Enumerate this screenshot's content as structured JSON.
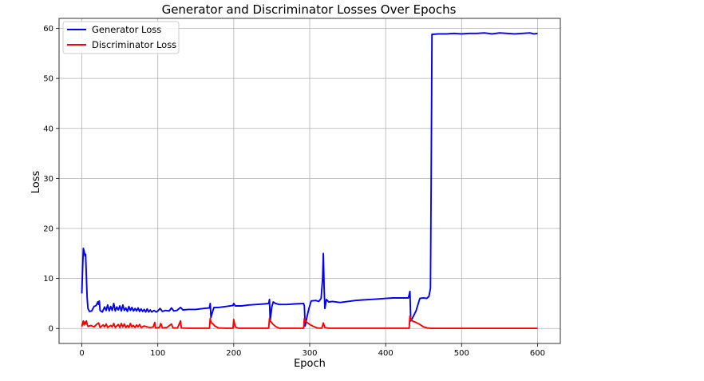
{
  "chart_data": {
    "type": "line",
    "title": "Generator and Discriminator Losses Over Epochs",
    "xlabel": "Epoch",
    "ylabel": "Loss",
    "xlim": [
      -30,
      630
    ],
    "ylim": [
      -3,
      62
    ],
    "xticks": [
      0,
      100,
      200,
      300,
      400,
      500,
      600
    ],
    "yticks": [
      0,
      10,
      20,
      30,
      40,
      50,
      60
    ],
    "grid": true,
    "legend_position": "top-left",
    "series": [
      {
        "name": "Generator Loss",
        "color": "#0000ff",
        "points": [
          [
            0,
            7
          ],
          [
            1,
            12
          ],
          [
            2,
            16
          ],
          [
            3,
            15.5
          ],
          [
            4,
            14.5
          ],
          [
            5,
            14.8
          ],
          [
            6,
            10
          ],
          [
            7,
            6
          ],
          [
            8,
            4
          ],
          [
            10,
            3.4
          ],
          [
            13,
            3.5
          ],
          [
            16,
            4.4
          ],
          [
            19,
            4.6
          ],
          [
            21,
            5.3
          ],
          [
            22,
            4.8
          ],
          [
            23,
            5.5
          ],
          [
            24,
            3.6
          ],
          [
            27,
            3.3
          ],
          [
            30,
            4.3
          ],
          [
            32,
            3.6
          ],
          [
            34,
            4.7
          ],
          [
            36,
            3.5
          ],
          [
            38,
            4.4
          ],
          [
            40,
            3.6
          ],
          [
            42,
            5.0
          ],
          [
            44,
            3.5
          ],
          [
            46,
            4.3
          ],
          [
            48,
            3.7
          ],
          [
            50,
            4.5
          ],
          [
            52,
            3.5
          ],
          [
            54,
            4.7
          ],
          [
            56,
            3.6
          ],
          [
            58,
            4.1
          ],
          [
            60,
            3.4
          ],
          [
            62,
            4.4
          ],
          [
            64,
            3.6
          ],
          [
            66,
            4.2
          ],
          [
            68,
            3.5
          ],
          [
            70,
            4.0
          ],
          [
            72,
            3.5
          ],
          [
            74,
            4.1
          ],
          [
            76,
            3.4
          ],
          [
            78,
            3.9
          ],
          [
            80,
            3.4
          ],
          [
            82,
            3.8
          ],
          [
            84,
            3.3
          ],
          [
            86,
            3.9
          ],
          [
            88,
            3.3
          ],
          [
            90,
            3.7
          ],
          [
            92,
            3.3
          ],
          [
            95,
            3.6
          ],
          [
            98,
            3.3
          ],
          [
            100,
            3.5
          ],
          [
            103,
            4.0
          ],
          [
            106,
            3.4
          ],
          [
            110,
            3.6
          ],
          [
            115,
            3.5
          ],
          [
            118,
            4.1
          ],
          [
            121,
            3.5
          ],
          [
            125,
            3.6
          ],
          [
            130,
            4.2
          ],
          [
            133,
            3.7
          ],
          [
            140,
            3.8
          ],
          [
            150,
            3.8
          ],
          [
            160,
            4.0
          ],
          [
            168,
            4.1
          ],
          [
            169,
            5.0
          ],
          [
            170,
            2.2
          ],
          [
            172,
            3.3
          ],
          [
            174,
            4.2
          ],
          [
            180,
            4.2
          ],
          [
            190,
            4.4
          ],
          [
            199,
            4.6
          ],
          [
            200,
            5.0
          ],
          [
            202,
            4.5
          ],
          [
            210,
            4.5
          ],
          [
            220,
            4.7
          ],
          [
            230,
            4.8
          ],
          [
            240,
            4.9
          ],
          [
            246,
            5.0
          ],
          [
            247,
            5.8
          ],
          [
            248,
            1.5
          ],
          [
            250,
            4.2
          ],
          [
            252,
            5.3
          ],
          [
            255,
            5.0
          ],
          [
            260,
            4.8
          ],
          [
            270,
            4.8
          ],
          [
            280,
            4.9
          ],
          [
            292,
            5.0
          ],
          [
            293,
            4.5
          ],
          [
            294,
            0.5
          ],
          [
            296,
            2.0
          ],
          [
            299,
            4.0
          ],
          [
            302,
            5.5
          ],
          [
            308,
            5.6
          ],
          [
            312,
            5.4
          ],
          [
            315,
            6.0
          ],
          [
            317,
            10
          ],
          [
            318,
            15
          ],
          [
            319,
            8
          ],
          [
            320,
            4.0
          ],
          [
            322,
            5.8
          ],
          [
            325,
            5.3
          ],
          [
            330,
            5.4
          ],
          [
            340,
            5.2
          ],
          [
            350,
            5.4
          ],
          [
            360,
            5.6
          ],
          [
            370,
            5.7
          ],
          [
            380,
            5.8
          ],
          [
            390,
            5.9
          ],
          [
            400,
            6.0
          ],
          [
            410,
            6.1
          ],
          [
            420,
            6.1
          ],
          [
            430,
            6.1
          ],
          [
            432,
            7.4
          ],
          [
            433,
            1.5
          ],
          [
            435,
            2.0
          ],
          [
            440,
            3.5
          ],
          [
            445,
            6.0
          ],
          [
            450,
            6.1
          ],
          [
            454,
            6.0
          ],
          [
            457,
            6.4
          ],
          [
            459,
            8.0
          ],
          [
            460,
            30
          ],
          [
            461,
            58.8
          ],
          [
            470,
            58.9
          ],
          [
            480,
            58.9
          ],
          [
            490,
            59.0
          ],
          [
            500,
            58.9
          ],
          [
            510,
            59.0
          ],
          [
            520,
            59.0
          ],
          [
            530,
            59.1
          ],
          [
            540,
            58.9
          ],
          [
            550,
            59.1
          ],
          [
            560,
            59.0
          ],
          [
            570,
            58.9
          ],
          [
            580,
            59.0
          ],
          [
            590,
            59.1
          ],
          [
            595,
            58.9
          ],
          [
            600,
            59.0
          ]
        ]
      },
      {
        "name": "Discriminator Loss",
        "color": "#ff0000",
        "points": [
          [
            0,
            0.4
          ],
          [
            1,
            1.0
          ],
          [
            2,
            1.5
          ],
          [
            3,
            0.7
          ],
          [
            4,
            1.3
          ],
          [
            5,
            0.9
          ],
          [
            6,
            1.5
          ],
          [
            7,
            0.8
          ],
          [
            8,
            0.4
          ],
          [
            12,
            0.6
          ],
          [
            16,
            0.3
          ],
          [
            20,
            0.9
          ],
          [
            22,
            1.1
          ],
          [
            24,
            0.2
          ],
          [
            28,
            0.7
          ],
          [
            30,
            0.3
          ],
          [
            32,
            0.9
          ],
          [
            34,
            0.2
          ],
          [
            38,
            0.6
          ],
          [
            40,
            0.3
          ],
          [
            42,
            1.0
          ],
          [
            44,
            0.2
          ],
          [
            48,
            0.8
          ],
          [
            50,
            0.2
          ],
          [
            52,
            1.0
          ],
          [
            54,
            0.3
          ],
          [
            56,
            0.9
          ],
          [
            58,
            0.2
          ],
          [
            60,
            0.6
          ],
          [
            62,
            0.2
          ],
          [
            64,
            1.0
          ],
          [
            66,
            0.3
          ],
          [
            68,
            0.6
          ],
          [
            70,
            0.2
          ],
          [
            72,
            0.7
          ],
          [
            74,
            0.3
          ],
          [
            76,
            0.8
          ],
          [
            78,
            0.2
          ],
          [
            82,
            0.5
          ],
          [
            86,
            0.3
          ],
          [
            90,
            0.2
          ],
          [
            94,
            0.3
          ],
          [
            96,
            1.2
          ],
          [
            97,
            0.1
          ],
          [
            102,
            0.2
          ],
          [
            104,
            1.0
          ],
          [
            106,
            0.1
          ],
          [
            112,
            0.2
          ],
          [
            118,
            0.9
          ],
          [
            120,
            0.1
          ],
          [
            126,
            0.1
          ],
          [
            130,
            1.5
          ],
          [
            131,
            0.1
          ],
          [
            140,
            0.05
          ],
          [
            150,
            0.05
          ],
          [
            160,
            0.05
          ],
          [
            168,
            0.05
          ],
          [
            169,
            2.0
          ],
          [
            170,
            1.2
          ],
          [
            172,
            1.0
          ],
          [
            175,
            0.5
          ],
          [
            180,
            0.1
          ],
          [
            190,
            0.05
          ],
          [
            199,
            0.05
          ],
          [
            200,
            1.8
          ],
          [
            202,
            0.3
          ],
          [
            206,
            0.05
          ],
          [
            220,
            0.05
          ],
          [
            235,
            0.05
          ],
          [
            246,
            0.05
          ],
          [
            247,
            2.0
          ],
          [
            248,
            1.5
          ],
          [
            252,
            0.8
          ],
          [
            256,
            0.3
          ],
          [
            260,
            0.05
          ],
          [
            275,
            0.05
          ],
          [
            292,
            0.05
          ],
          [
            293,
            2.0
          ],
          [
            294,
            1.5
          ],
          [
            300,
            0.8
          ],
          [
            305,
            0.4
          ],
          [
            310,
            0.1
          ],
          [
            316,
            0.05
          ],
          [
            318,
            1.1
          ],
          [
            320,
            0.2
          ],
          [
            325,
            0.05
          ],
          [
            340,
            0.05
          ],
          [
            360,
            0.05
          ],
          [
            380,
            0.05
          ],
          [
            400,
            0.05
          ],
          [
            420,
            0.05
          ],
          [
            431,
            0.05
          ],
          [
            432,
            2.5
          ],
          [
            434,
            1.6
          ],
          [
            440,
            1.2
          ],
          [
            445,
            0.8
          ],
          [
            450,
            0.3
          ],
          [
            455,
            0.1
          ],
          [
            460,
            0.02
          ],
          [
            480,
            0.02
          ],
          [
            500,
            0.02
          ],
          [
            520,
            0.02
          ],
          [
            540,
            0.02
          ],
          [
            560,
            0.02
          ],
          [
            580,
            0.02
          ],
          [
            600,
            0.02
          ]
        ]
      }
    ]
  }
}
